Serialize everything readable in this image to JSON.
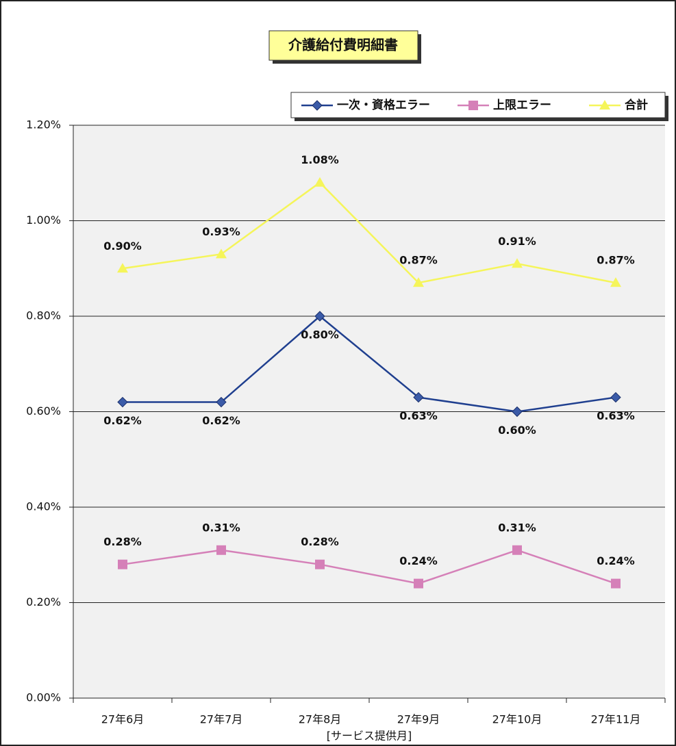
{
  "chart_data": {
    "type": "line",
    "title": "介護給付費明細書",
    "x_label": "[サービス提供月]",
    "categories": [
      "27年6月",
      "27年7月",
      "27年8月",
      "27年9月",
      "27年10月",
      "27年11月"
    ],
    "series": [
      {
        "name": "一次・資格エラー",
        "color": "#1f3f8f",
        "marker": "diamond",
        "values": [
          0.62,
          0.62,
          0.8,
          0.63,
          0.6,
          0.63
        ],
        "value_labels": [
          "0.62%",
          "0.62%",
          "0.80%",
          "0.63%",
          "0.60%",
          "0.63%"
        ]
      },
      {
        "name": "上限エラー",
        "color": "#d580b8",
        "marker": "square",
        "values": [
          0.28,
          0.31,
          0.28,
          0.24,
          0.31,
          0.24
        ],
        "value_labels": [
          "0.28%",
          "0.31%",
          "0.28%",
          "0.24%",
          "0.31%",
          "0.24%"
        ]
      },
      {
        "name": "合計",
        "color": "#f5f55a",
        "marker": "triangle",
        "values": [
          0.9,
          0.93,
          1.08,
          0.87,
          0.91,
          0.87
        ],
        "value_labels": [
          "0.90%",
          "0.93%",
          "1.08%",
          "0.87%",
          "0.91%",
          "0.87%"
        ]
      }
    ],
    "ylim": [
      0,
      1.2
    ],
    "yticks": [
      {
        "value": 0,
        "label": "0.00%"
      },
      {
        "value": 0.2,
        "label": "0.20%"
      },
      {
        "value": 0.4,
        "label": "0.40%"
      },
      {
        "value": 0.6,
        "label": "0.60%"
      },
      {
        "value": 0.8,
        "label": "0.80%"
      },
      {
        "value": 1.0,
        "label": "1.00%"
      },
      {
        "value": 1.2,
        "label": "1.20%"
      }
    ],
    "grid": true,
    "legend": "top-right"
  }
}
